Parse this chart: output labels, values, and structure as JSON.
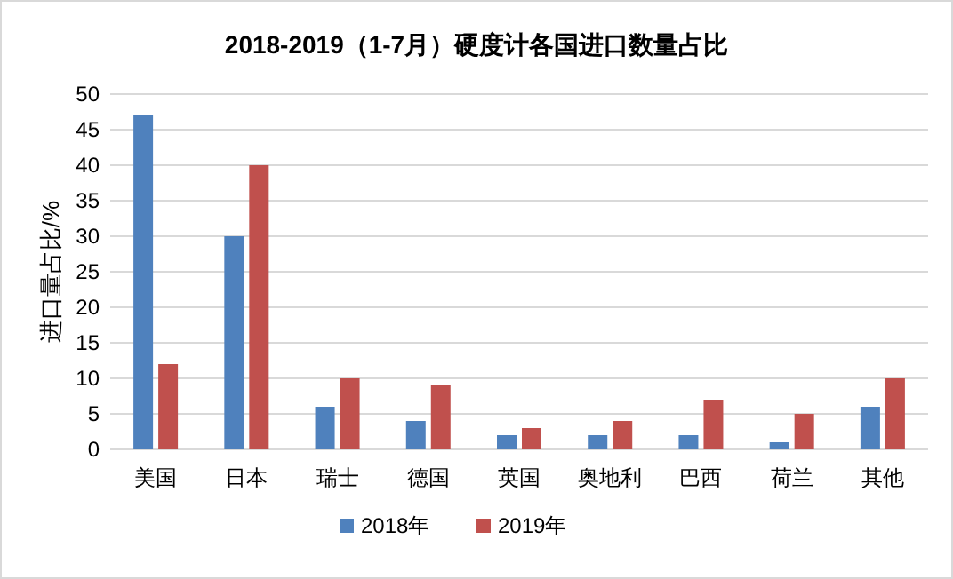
{
  "chart_data": {
    "type": "bar",
    "title": "2018-2019（1-7月）硬度计各国进口数量占比",
    "ylabel": "进口量占比/%",
    "categories": [
      "美国",
      "日本",
      "瑞士",
      "德国",
      "英国",
      "奥地利",
      "巴西",
      "荷兰",
      "其他"
    ],
    "series": [
      {
        "name": "2018年",
        "color": "#4f81bd",
        "values": [
          47,
          30,
          6,
          4,
          2,
          2,
          2,
          1,
          6
        ]
      },
      {
        "name": "2019年",
        "color": "#c0504d",
        "values": [
          12,
          40,
          10,
          9,
          3,
          4,
          7,
          5,
          10
        ]
      }
    ],
    "ylim": [
      0,
      50
    ],
    "yticks": [
      0,
      5,
      10,
      15,
      20,
      25,
      30,
      35,
      40,
      45,
      50
    ],
    "grid": "y",
    "legend": "bottom"
  }
}
